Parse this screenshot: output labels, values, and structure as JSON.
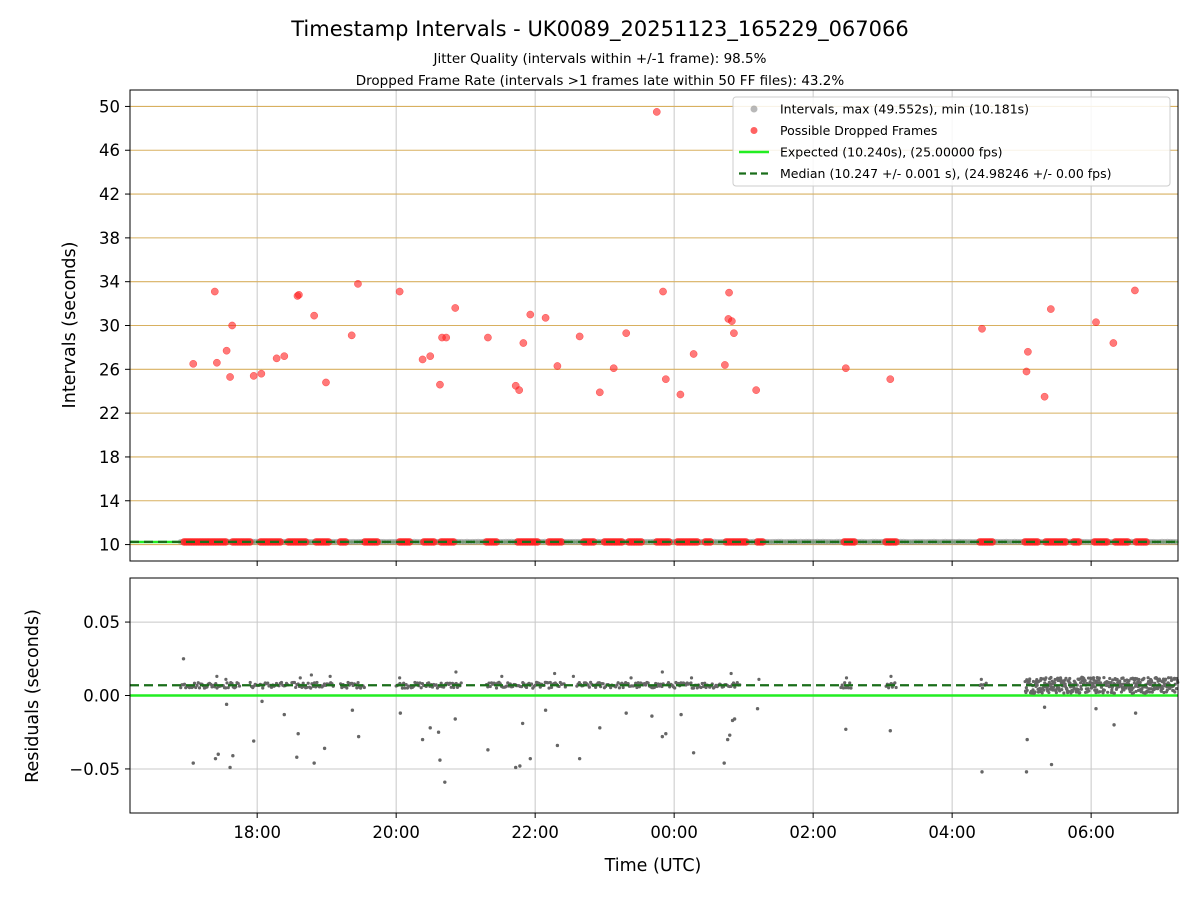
{
  "chart_data": {
    "type": "scatter",
    "title": "Timestamp Intervals - UK0089_20251123_165229_067066",
    "subtitle_lines": [
      "Jitter Quality (intervals within +/-1 frame): 98.5%",
      "Dropped Frame Rate (intervals >1 frames late within 50 FF files): 43.2%"
    ],
    "colors": {
      "grid_horizontal": "#d8b060",
      "grid_vertical": "#c8c8c8",
      "intervals": "#888888",
      "dropped": "#ff2020",
      "expected": "#22ee22",
      "median": "#1a6e1a",
      "residuals": "#666666"
    },
    "time_axis": {
      "label": "Time (UTC)",
      "xlim_hours": [
        16.17,
        31.25
      ],
      "ticks": [
        {
          "hour": 18,
          "label": "18:00"
        },
        {
          "hour": 20,
          "label": "20:00"
        },
        {
          "hour": 22,
          "label": "22:00"
        },
        {
          "hour": 24,
          "label": "00:00"
        },
        {
          "hour": 26,
          "label": "02:00"
        },
        {
          "hour": 28,
          "label": "04:00"
        },
        {
          "hour": 30,
          "label": "06:00"
        }
      ]
    },
    "top_panel": {
      "ylabel": "Intervals (seconds)",
      "ylim": [
        8.5,
        51.5
      ],
      "yticks": [
        10,
        14,
        18,
        22,
        26,
        30,
        34,
        38,
        42,
        46,
        50
      ],
      "expected_value": 10.24,
      "median_value": 10.247,
      "legend": {
        "placement": "top-right",
        "entries": [
          {
            "type": "intervals",
            "label": "Intervals, max (49.552s), min (10.181s)"
          },
          {
            "type": "dropped",
            "label": "Possible Dropped Frames"
          },
          {
            "type": "expected",
            "label": "Expected (10.240s), (25.00000 fps)"
          },
          {
            "type": "median",
            "label": "Median (10.247 +/- 0.001 s), (24.98246 +/- 0.00 fps)"
          }
        ]
      },
      "dropped_frames": [
        [
          17.08,
          26.5
        ],
        [
          17.39,
          33.1
        ],
        [
          17.42,
          26.6
        ],
        [
          17.56,
          27.7
        ],
        [
          17.61,
          25.3
        ],
        [
          17.64,
          30.0
        ],
        [
          17.95,
          25.4
        ],
        [
          18.06,
          25.6
        ],
        [
          18.28,
          27.0
        ],
        [
          18.39,
          27.2
        ],
        [
          18.58,
          32.7
        ],
        [
          18.6,
          32.8
        ],
        [
          18.82,
          30.9
        ],
        [
          18.99,
          24.8
        ],
        [
          19.36,
          29.1
        ],
        [
          19.45,
          33.8
        ],
        [
          20.05,
          33.1
        ],
        [
          20.38,
          26.9
        ],
        [
          20.49,
          27.2
        ],
        [
          20.63,
          24.6
        ],
        [
          20.66,
          28.9
        ],
        [
          20.72,
          28.9
        ],
        [
          20.85,
          31.6
        ],
        [
          21.32,
          28.9
        ],
        [
          21.72,
          24.5
        ],
        [
          21.77,
          24.1
        ],
        [
          21.83,
          28.4
        ],
        [
          21.93,
          31.0
        ],
        [
          22.15,
          30.7
        ],
        [
          22.32,
          26.3
        ],
        [
          22.64,
          29.0
        ],
        [
          22.93,
          23.9
        ],
        [
          23.13,
          26.1
        ],
        [
          23.31,
          29.3
        ],
        [
          23.75,
          49.5
        ],
        [
          23.84,
          33.1
        ],
        [
          23.88,
          25.1
        ],
        [
          24.09,
          23.7
        ],
        [
          24.28,
          27.4
        ],
        [
          24.73,
          26.4
        ],
        [
          24.78,
          30.6
        ],
        [
          24.79,
          33.0
        ],
        [
          24.83,
          30.4
        ],
        [
          24.86,
          29.3
        ],
        [
          25.18,
          24.1
        ],
        [
          26.47,
          26.1
        ],
        [
          27.11,
          25.1
        ],
        [
          28.43,
          29.7
        ],
        [
          29.07,
          25.8
        ],
        [
          29.09,
          27.6
        ],
        [
          29.33,
          23.5
        ],
        [
          29.42,
          31.5
        ],
        [
          30.07,
          30.3
        ],
        [
          30.32,
          28.4
        ],
        [
          30.63,
          33.2
        ]
      ],
      "dropped_clusters_at_baseline": [
        [
          16.95,
          17.55
        ],
        [
          17.65,
          17.9
        ],
        [
          18.05,
          18.35
        ],
        [
          18.45,
          18.7
        ],
        [
          18.85,
          19.05
        ],
        [
          19.2,
          19.3
        ],
        [
          19.55,
          19.75
        ],
        [
          20.05,
          20.2
        ],
        [
          20.4,
          20.55
        ],
        [
          20.65,
          20.85
        ],
        [
          21.3,
          21.45
        ],
        [
          21.75,
          22.05
        ],
        [
          22.2,
          22.4
        ],
        [
          22.7,
          22.85
        ],
        [
          23.0,
          23.25
        ],
        [
          23.35,
          23.55
        ],
        [
          23.75,
          23.95
        ],
        [
          24.05,
          24.35
        ],
        [
          24.45,
          24.55
        ],
        [
          24.75,
          25.05
        ],
        [
          25.2,
          25.3
        ],
        [
          26.45,
          26.6
        ],
        [
          27.05,
          27.2
        ],
        [
          28.4,
          28.6
        ],
        [
          29.05,
          29.25
        ],
        [
          29.35,
          29.65
        ],
        [
          29.75,
          29.85
        ],
        [
          30.05,
          30.25
        ],
        [
          30.35,
          30.55
        ],
        [
          30.65,
          30.8
        ]
      ]
    },
    "bottom_panel": {
      "ylabel": "Residuals (seconds)",
      "ylim": [
        -0.08,
        0.08
      ],
      "yticks": [
        {
          "value": 0.05,
          "label": "0.05"
        },
        {
          "value": 0.0,
          "label": "0.00"
        },
        {
          "value": -0.05,
          "label": "−0.05"
        }
      ],
      "expected_residual": 0.0,
      "median_residual": 0.007,
      "outliers": [
        [
          16.94,
          0.025
        ],
        [
          17.08,
          -0.046
        ],
        [
          17.4,
          -0.043
        ],
        [
          17.44,
          -0.04
        ],
        [
          17.56,
          -0.006
        ],
        [
          17.61,
          -0.049
        ],
        [
          17.65,
          -0.041
        ],
        [
          17.95,
          -0.031
        ],
        [
          18.07,
          -0.004
        ],
        [
          18.39,
          -0.013
        ],
        [
          18.57,
          -0.042
        ],
        [
          18.59,
          -0.026
        ],
        [
          18.82,
          -0.046
        ],
        [
          18.97,
          -0.036
        ],
        [
          19.37,
          -0.01
        ],
        [
          19.46,
          -0.028
        ],
        [
          20.06,
          -0.012
        ],
        [
          20.38,
          -0.03
        ],
        [
          20.49,
          -0.022
        ],
        [
          20.61,
          -0.025
        ],
        [
          20.63,
          -0.044
        ],
        [
          20.7,
          -0.059
        ],
        [
          20.85,
          -0.016
        ],
        [
          21.32,
          -0.037
        ],
        [
          21.72,
          -0.049
        ],
        [
          21.78,
          -0.048
        ],
        [
          21.82,
          -0.019
        ],
        [
          21.93,
          -0.043
        ],
        [
          22.15,
          -0.01
        ],
        [
          22.32,
          -0.034
        ],
        [
          22.64,
          -0.043
        ],
        [
          22.93,
          -0.022
        ],
        [
          23.31,
          -0.012
        ],
        [
          23.68,
          -0.014
        ],
        [
          23.83,
          -0.028
        ],
        [
          23.88,
          -0.026
        ],
        [
          24.1,
          -0.013
        ],
        [
          24.28,
          -0.039
        ],
        [
          24.72,
          -0.046
        ],
        [
          24.77,
          -0.03
        ],
        [
          24.8,
          -0.027
        ],
        [
          24.84,
          -0.017
        ],
        [
          24.87,
          -0.016
        ],
        [
          25.2,
          -0.009
        ],
        [
          26.47,
          -0.023
        ],
        [
          27.11,
          -0.024
        ],
        [
          28.43,
          -0.052
        ],
        [
          29.07,
          -0.052
        ],
        [
          29.08,
          -0.03
        ],
        [
          29.33,
          -0.008
        ],
        [
          29.43,
          -0.047
        ],
        [
          30.07,
          -0.009
        ],
        [
          30.33,
          -0.02
        ],
        [
          30.64,
          -0.012
        ]
      ],
      "dense_band_segments": [
        [
          16.9,
          17.75
        ],
        [
          17.9,
          18.45
        ],
        [
          18.5,
          19.1
        ],
        [
          19.2,
          19.55
        ],
        [
          20.0,
          20.95
        ],
        [
          21.3,
          22.45
        ],
        [
          22.6,
          23.85
        ],
        [
          23.9,
          24.95
        ],
        [
          26.4,
          26.55
        ],
        [
          27.05,
          27.2
        ],
        [
          28.4,
          28.5
        ],
        [
          29.05,
          31.25
        ]
      ],
      "dense_band_outliers_above": [
        [
          17.42,
          0.013
        ],
        [
          17.55,
          0.011
        ],
        [
          18.62,
          0.012
        ],
        [
          18.78,
          0.014
        ],
        [
          19.05,
          0.013
        ],
        [
          20.05,
          0.012
        ],
        [
          20.86,
          0.016
        ],
        [
          21.52,
          0.013
        ],
        [
          22.28,
          0.015
        ],
        [
          22.55,
          0.013
        ],
        [
          23.38,
          0.012
        ],
        [
          23.83,
          0.016
        ],
        [
          24.25,
          0.012
        ],
        [
          24.82,
          0.015
        ],
        [
          25.22,
          0.011
        ],
        [
          26.48,
          0.012
        ],
        [
          27.12,
          0.013
        ],
        [
          28.42,
          0.011
        ]
      ]
    }
  }
}
